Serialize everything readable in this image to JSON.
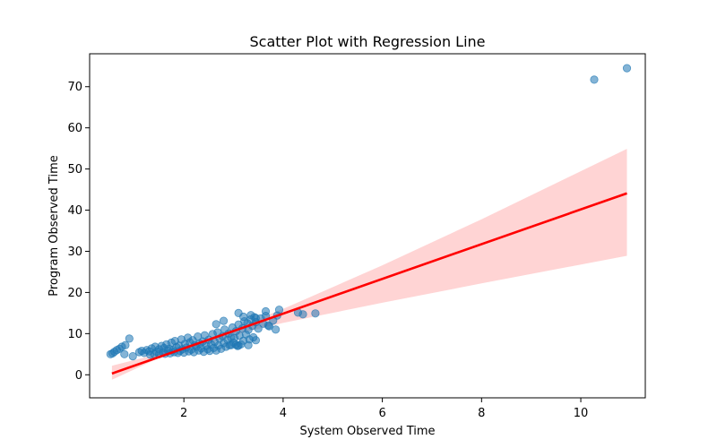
{
  "chart_data": {
    "type": "scatter",
    "title": "Scatter Plot with Regression Line",
    "xlabel": "System Observed Time",
    "ylabel": "Program Observed Time",
    "xlim": [
      0.1,
      11.3
    ],
    "ylim": [
      -5.6,
      78.0
    ],
    "x_ticks": [
      2,
      4,
      6,
      8,
      10
    ],
    "y_ticks": [
      0,
      10,
      20,
      30,
      40,
      50,
      60,
      70
    ],
    "grid": false,
    "legend": "none",
    "colors": {
      "points": "#1f77b4",
      "regression_line": "#ff0000",
      "confidence_band": "#ffcccc"
    },
    "regression": {
      "x": [
        0.55,
        10.93
      ],
      "y": [
        0.3,
        44.1
      ]
    },
    "confidence_band": {
      "x": [
        0.55,
        1.5,
        2.5,
        3.3,
        4.0,
        6.0,
        8.0,
        10.93
      ],
      "lower": [
        -1.2,
        4.1,
        7.6,
        10.6,
        12.6,
        17.5,
        22.2,
        28.9
      ],
      "upper": [
        2.2,
        5.1,
        8.8,
        12.6,
        16.0,
        26.6,
        37.8,
        54.9
      ]
    },
    "points": [
      [
        0.52,
        5.0
      ],
      [
        0.56,
        5.2
      ],
      [
        0.6,
        5.6
      ],
      [
        0.65,
        6.0
      ],
      [
        0.7,
        6.3
      ],
      [
        0.75,
        6.8
      ],
      [
        0.82,
        7.2
      ],
      [
        0.8,
        5.0
      ],
      [
        0.9,
        8.8
      ],
      [
        0.97,
        4.5
      ],
      [
        1.1,
        5.5
      ],
      [
        1.15,
        5.8
      ],
      [
        1.2,
        5.3
      ],
      [
        1.25,
        6.0
      ],
      [
        1.3,
        5.7
      ],
      [
        1.32,
        4.9
      ],
      [
        1.35,
        6.4
      ],
      [
        1.4,
        5.0
      ],
      [
        1.42,
        6.8
      ],
      [
        1.45,
        5.6
      ],
      [
        1.5,
        6.2
      ],
      [
        1.5,
        5.0
      ],
      [
        1.55,
        7.0
      ],
      [
        1.58,
        5.4
      ],
      [
        1.6,
        6.5
      ],
      [
        1.62,
        5.1
      ],
      [
        1.65,
        7.4
      ],
      [
        1.68,
        5.9
      ],
      [
        1.7,
        6.3
      ],
      [
        1.72,
        5.2
      ],
      [
        1.75,
        7.8
      ],
      [
        1.78,
        6.0
      ],
      [
        1.8,
        5.5
      ],
      [
        1.82,
        8.2
      ],
      [
        1.85,
        6.7
      ],
      [
        1.88,
        5.3
      ],
      [
        1.9,
        7.1
      ],
      [
        1.92,
        5.8
      ],
      [
        1.95,
        8.6
      ],
      [
        1.97,
        6.2
      ],
      [
        2.0,
        5.4
      ],
      [
        2.02,
        7.5
      ],
      [
        2.05,
        6.6
      ],
      [
        2.08,
        9.0
      ],
      [
        2.1,
        5.7
      ],
      [
        2.12,
        7.9
      ],
      [
        2.15,
        6.1
      ],
      [
        2.18,
        8.4
      ],
      [
        2.2,
        5.5
      ],
      [
        2.22,
        7.2
      ],
      [
        2.25,
        6.8
      ],
      [
        2.28,
        9.3
      ],
      [
        2.3,
        5.9
      ],
      [
        2.32,
        7.6
      ],
      [
        2.35,
        6.4
      ],
      [
        2.38,
        8.1
      ],
      [
        2.4,
        5.6
      ],
      [
        2.42,
        9.6
      ],
      [
        2.45,
        7.0
      ],
      [
        2.48,
        6.2
      ],
      [
        2.5,
        8.5
      ],
      [
        2.52,
        5.8
      ],
      [
        2.55,
        7.4
      ],
      [
        2.58,
        9.9
      ],
      [
        2.6,
        6.5
      ],
      [
        2.62,
        8.0
      ],
      [
        2.65,
        5.9
      ],
      [
        2.68,
        10.3
      ],
      [
        2.7,
        7.1
      ],
      [
        2.72,
        8.8
      ],
      [
        2.75,
        6.3
      ],
      [
        2.78,
        9.4
      ],
      [
        2.8,
        7.7
      ],
      [
        2.82,
        11.0
      ],
      [
        2.85,
        6.8
      ],
      [
        2.88,
        8.5
      ],
      [
        2.9,
        10.0
      ],
      [
        2.92,
        7.2
      ],
      [
        2.95,
        9.0
      ],
      [
        2.98,
        11.5
      ],
      [
        3.0,
        7.8
      ],
      [
        3.02,
        8.9
      ],
      [
        3.05,
        10.6
      ],
      [
        3.08,
        7.0
      ],
      [
        3.1,
        12.2
      ],
      [
        3.12,
        9.5
      ],
      [
        3.15,
        7.4
      ],
      [
        3.18,
        11.3
      ],
      [
        3.2,
        8.3
      ],
      [
        3.22,
        13.0
      ],
      [
        3.25,
        9.8
      ],
      [
        3.28,
        12.5
      ],
      [
        3.3,
        10.9
      ],
      [
        3.32,
        8.6
      ],
      [
        3.35,
        13.5
      ],
      [
        3.38,
        11.9
      ],
      [
        3.4,
        9.1
      ],
      [
        3.42,
        14.0
      ],
      [
        3.45,
        12.8
      ],
      [
        3.5,
        11.2
      ],
      [
        3.55,
        13.7
      ],
      [
        3.6,
        12.4
      ],
      [
        3.65,
        14.3
      ],
      [
        3.7,
        12.0
      ],
      [
        3.8,
        13.2
      ],
      [
        3.85,
        11.0
      ],
      [
        2.65,
        12.3
      ],
      [
        2.8,
        13.1
      ],
      [
        3.1,
        15.0
      ],
      [
        3.2,
        14.1
      ],
      [
        3.35,
        14.5
      ],
      [
        3.45,
        13.8
      ],
      [
        3.65,
        15.4
      ],
      [
        3.72,
        11.8
      ],
      [
        3.88,
        14.4
      ],
      [
        3.92,
        15.8
      ],
      [
        3.3,
        7.2
      ],
      [
        3.45,
        8.4
      ],
      [
        3.1,
        7.1
      ],
      [
        3.05,
        7.3
      ],
      [
        2.95,
        7.2
      ],
      [
        4.3,
        15.1
      ],
      [
        4.4,
        14.7
      ],
      [
        4.65,
        14.9
      ],
      [
        10.27,
        71.7
      ],
      [
        10.93,
        74.5
      ]
    ]
  }
}
